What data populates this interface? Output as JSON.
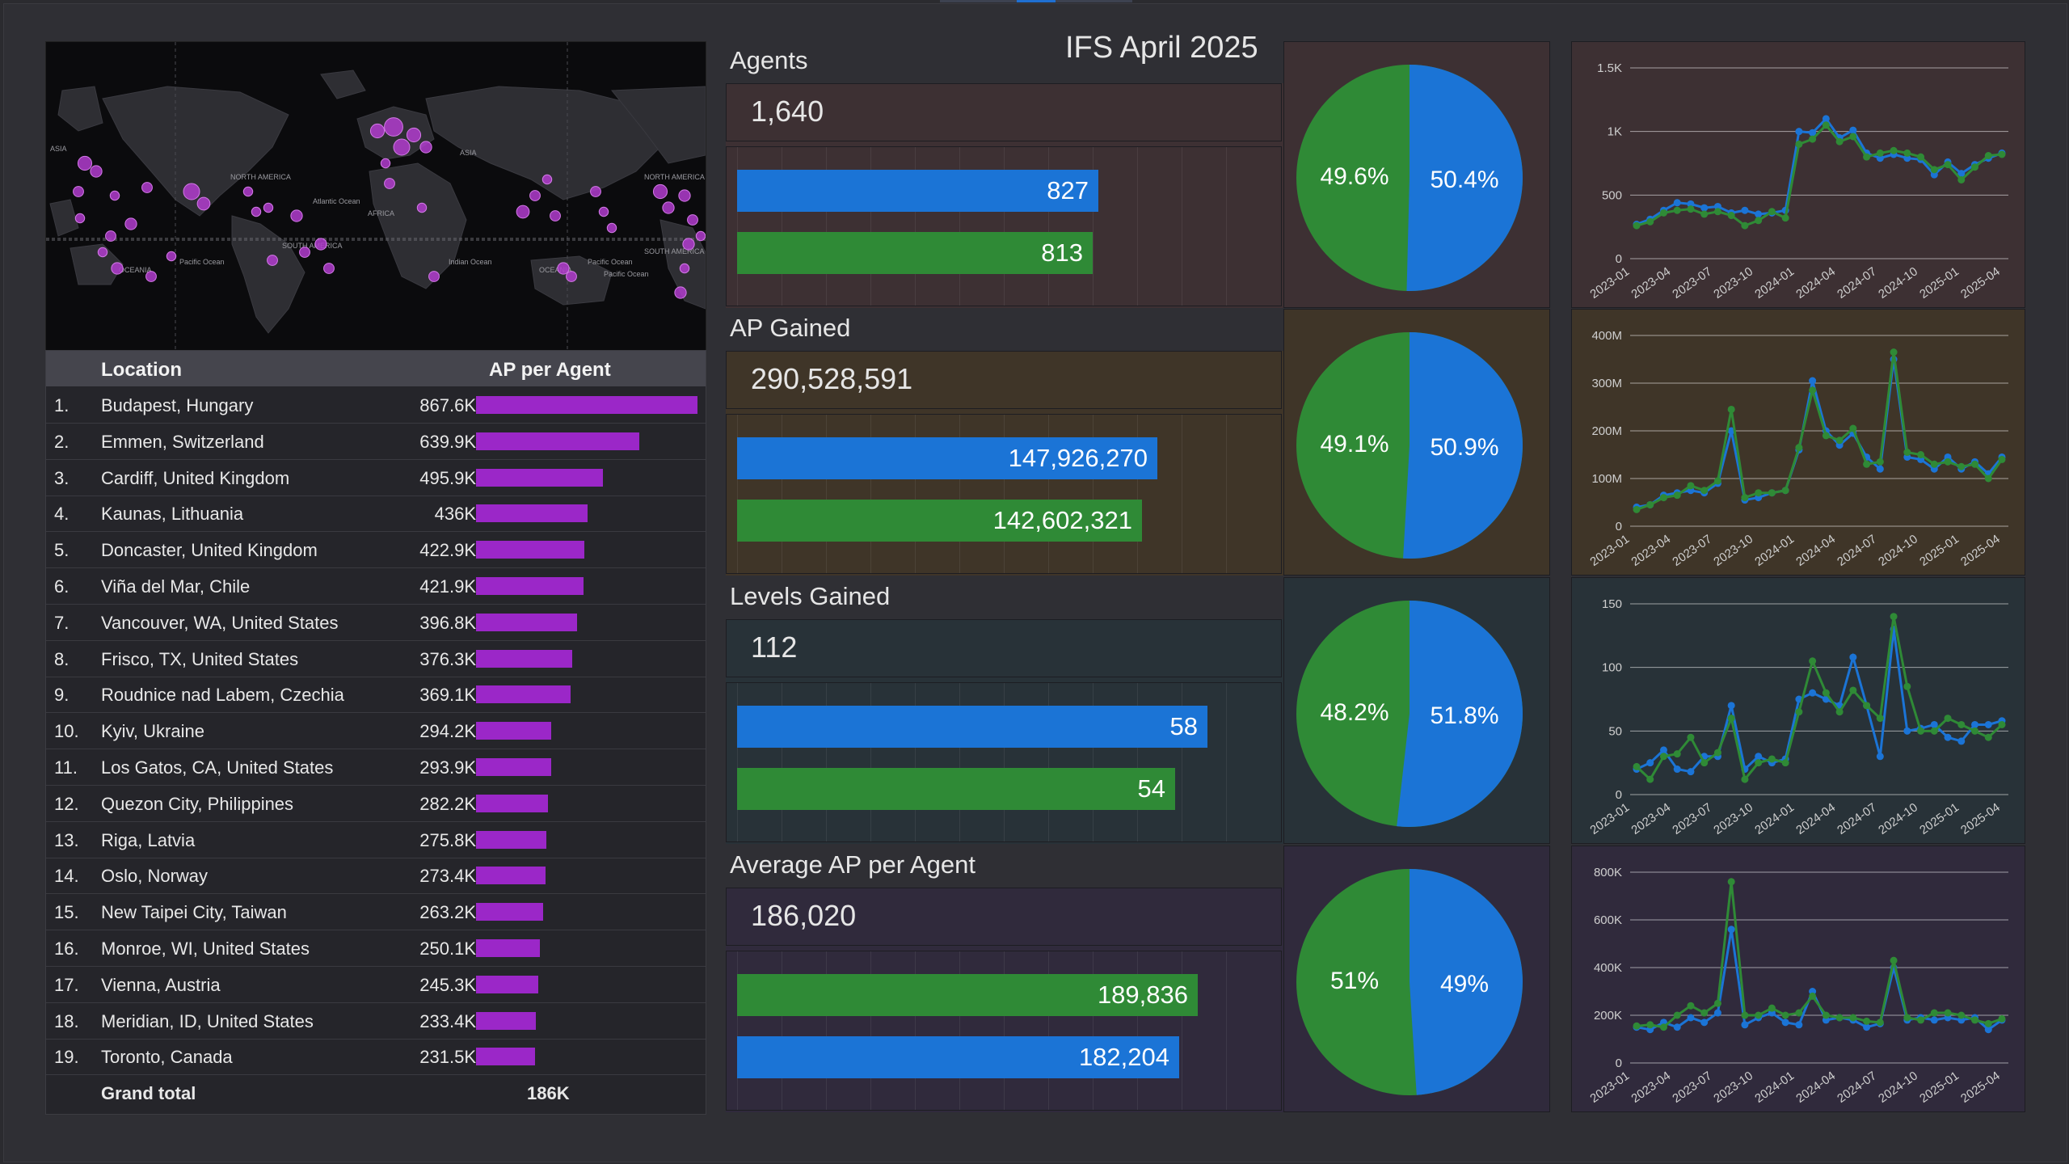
{
  "title": "IFS April 2025",
  "colors": {
    "blue": "#1b74d6",
    "green": "#2f8a36",
    "purple_bar": "#9b27c8",
    "map_dot": "#b23ccf",
    "section_bg": [
      "#3d3033",
      "#3f3528",
      "#283238",
      "#302a3c"
    ]
  },
  "map": {
    "labels": [
      "ASIA",
      "NORTH AMERICA",
      "ASIA",
      "NORTH AMERICA",
      "Atlantic Ocean",
      "AFRICA",
      "SOUTH AMERICA",
      "Pacific Ocean",
      "Indian Ocean",
      "OCEANIA",
      "SOUTH AMERICA",
      "Pacific Ocean",
      "OCEANIA",
      "Pacific Ocean"
    ]
  },
  "table": {
    "headers": {
      "location": "Location",
      "ap": "AP per Agent"
    },
    "rows": [
      {
        "idx": "1.",
        "location": "Budapest, Hungary",
        "value": "867.6K",
        "num": 867.6
      },
      {
        "idx": "2.",
        "location": "Emmen, Switzerland",
        "value": "639.9K",
        "num": 639.9
      },
      {
        "idx": "3.",
        "location": "Cardiff, United Kingdom",
        "value": "495.9K",
        "num": 495.9
      },
      {
        "idx": "4.",
        "location": "Kaunas, Lithuania",
        "value": "436K",
        "num": 436
      },
      {
        "idx": "5.",
        "location": "Doncaster, United Kingdom",
        "value": "422.9K",
        "num": 422.9
      },
      {
        "idx": "6.",
        "location": "Viña del Mar, Chile",
        "value": "421.9K",
        "num": 421.9
      },
      {
        "idx": "7.",
        "location": "Vancouver, WA, United States",
        "value": "396.8K",
        "num": 396.8
      },
      {
        "idx": "8.",
        "location": "Frisco, TX, United States",
        "value": "376.3K",
        "num": 376.3
      },
      {
        "idx": "9.",
        "location": "Roudnice nad Labem, Czechia",
        "value": "369.1K",
        "num": 369.1
      },
      {
        "idx": "10.",
        "location": "Kyiv, Ukraine",
        "value": "294.2K",
        "num": 294.2
      },
      {
        "idx": "11.",
        "location": "Los Gatos, CA, United States",
        "value": "293.9K",
        "num": 293.9
      },
      {
        "idx": "12.",
        "location": "Quezon City, Philippines",
        "value": "282.2K",
        "num": 282.2
      },
      {
        "idx": "13.",
        "location": "Riga, Latvia",
        "value": "275.8K",
        "num": 275.8
      },
      {
        "idx": "14.",
        "location": "Oslo, Norway",
        "value": "273.4K",
        "num": 273.4
      },
      {
        "idx": "15.",
        "location": "New Taipei City, Taiwan",
        "value": "263.2K",
        "num": 263.2
      },
      {
        "idx": "16.",
        "location": "Monroe, WI, United States",
        "value": "250.1K",
        "num": 250.1
      },
      {
        "idx": "17.",
        "location": "Vienna, Austria",
        "value": "245.3K",
        "num": 245.3
      },
      {
        "idx": "18.",
        "location": "Meridian, ID, United States",
        "value": "233.4K",
        "num": 233.4
      },
      {
        "idx": "19.",
        "location": "Toronto, Canada",
        "value": "231.5K",
        "num": 231.5
      }
    ],
    "total_label": "Grand total",
    "total_value": "186K"
  },
  "sections": [
    {
      "title": "Agents",
      "total": "1,640",
      "bars": [
        {
          "label": "827",
          "value": 827,
          "color": "blue"
        },
        {
          "label": "813",
          "value": 813,
          "color": "green"
        }
      ],
      "bar_max": 1150,
      "pie": {
        "blue": 50.4,
        "blue_label": "50.4%",
        "green_label": "49.6%"
      }
    },
    {
      "title": "AP Gained",
      "total": "290,528,591",
      "bars": [
        {
          "label": "147,926,270",
          "value": 147926270,
          "color": "blue"
        },
        {
          "label": "142,602,321",
          "value": 142602321,
          "color": "green"
        }
      ],
      "bar_max": 177000000,
      "pie": {
        "blue": 50.9,
        "blue_label": "50.9%",
        "green_label": "49.1%"
      }
    },
    {
      "title": "Levels Gained",
      "total": "112",
      "bars": [
        {
          "label": "58",
          "value": 58,
          "color": "blue"
        },
        {
          "label": "54",
          "value": 54,
          "color": "green"
        }
      ],
      "bar_max": 62,
      "pie": {
        "blue": 51.8,
        "blue_label": "51.8%",
        "green_label": "48.2%"
      }
    },
    {
      "title": "Average AP per Agent",
      "total": "186,020",
      "bars": [
        {
          "label": "189,836",
          "value": 189836,
          "color": "green"
        },
        {
          "label": "182,204",
          "value": 182204,
          "color": "blue"
        }
      ],
      "bar_max": 207000,
      "pie": {
        "blue": 49,
        "blue_label": "49%",
        "green_label": "51%"
      }
    }
  ],
  "chart_data": [
    {
      "type": "line",
      "x_ticks": [
        "2023-01",
        "2023-04",
        "2023-07",
        "2023-10",
        "2024-01",
        "2024-04",
        "2024-07",
        "2024-10",
        "2025-01",
        "2025-04"
      ],
      "y_ticks": [
        "0",
        "500",
        "1K",
        "1.5K"
      ],
      "ylim": [
        0,
        1500
      ],
      "series": [
        {
          "color": "blue",
          "values": [
            270,
            310,
            380,
            440,
            430,
            400,
            410,
            360,
            380,
            350,
            360,
            380,
            1000,
            990,
            1100,
            950,
            1010,
            830,
            790,
            820,
            790,
            780,
            660,
            760,
            670,
            740,
            790,
            830
          ]
        },
        {
          "color": "green",
          "values": [
            260,
            290,
            360,
            380,
            390,
            350,
            370,
            340,
            260,
            300,
            370,
            320,
            900,
            940,
            1050,
            920,
            960,
            800,
            830,
            850,
            830,
            800,
            700,
            740,
            620,
            720,
            810,
            820
          ]
        }
      ]
    },
    {
      "type": "line",
      "x_ticks": [
        "2023-01",
        "2023-04",
        "2023-07",
        "2023-10",
        "2024-01",
        "2024-04",
        "2024-07",
        "2024-10",
        "2025-01",
        "2025-04"
      ],
      "y_ticks": [
        "0",
        "100M",
        "200M",
        "300M",
        "400M"
      ],
      "ylim": [
        0,
        400
      ],
      "series": [
        {
          "color": "blue",
          "values": [
            40,
            45,
            65,
            70,
            75,
            70,
            90,
            200,
            55,
            60,
            70,
            75,
            160,
            305,
            200,
            170,
            195,
            145,
            120,
            350,
            145,
            140,
            120,
            145,
            120,
            135,
            110,
            145
          ]
        },
        {
          "color": "green",
          "values": [
            35,
            45,
            60,
            65,
            85,
            75,
            95,
            245,
            60,
            70,
            70,
            75,
            165,
            285,
            190,
            180,
            205,
            130,
            135,
            365,
            155,
            150,
            130,
            135,
            125,
            130,
            100,
            140
          ]
        }
      ]
    },
    {
      "type": "line",
      "x_ticks": [
        "2023-01",
        "2023-04",
        "2023-07",
        "2023-10",
        "2024-01",
        "2024-04",
        "2024-07",
        "2024-10",
        "2025-01",
        "2025-04"
      ],
      "y_ticks": [
        "0",
        "50",
        "100",
        "150"
      ],
      "ylim": [
        0,
        150
      ],
      "series": [
        {
          "color": "blue",
          "values": [
            20,
            25,
            35,
            20,
            18,
            30,
            30,
            70,
            20,
            30,
            25,
            28,
            75,
            80,
            75,
            70,
            108,
            70,
            30,
            130,
            50,
            52,
            55,
            45,
            42,
            55,
            55,
            58
          ]
        },
        {
          "color": "green",
          "values": [
            22,
            12,
            30,
            32,
            45,
            25,
            33,
            60,
            12,
            25,
            28,
            25,
            65,
            105,
            80,
            65,
            82,
            70,
            60,
            140,
            85,
            50,
            50,
            60,
            55,
            50,
            45,
            55
          ]
        }
      ]
    },
    {
      "type": "line",
      "x_ticks": [
        "2023-01",
        "2023-04",
        "2023-07",
        "2023-10",
        "2024-01",
        "2024-04",
        "2024-07",
        "2024-10",
        "2025-01",
        "2025-04"
      ],
      "y_ticks": [
        "0",
        "200K",
        "400K",
        "600K",
        "800K"
      ],
      "ylim": [
        0,
        800
      ],
      "series": [
        {
          "color": "blue",
          "values": [
            150,
            140,
            170,
            150,
            190,
            170,
            210,
            560,
            160,
            190,
            210,
            170,
            160,
            300,
            180,
            190,
            180,
            150,
            165,
            400,
            180,
            190,
            180,
            190,
            180,
            190,
            140,
            180
          ]
        },
        {
          "color": "green",
          "values": [
            155,
            160,
            150,
            200,
            240,
            210,
            250,
            760,
            200,
            200,
            230,
            200,
            210,
            280,
            200,
            190,
            190,
            175,
            170,
            430,
            190,
            180,
            210,
            210,
            200,
            180,
            165,
            185
          ]
        }
      ]
    }
  ]
}
